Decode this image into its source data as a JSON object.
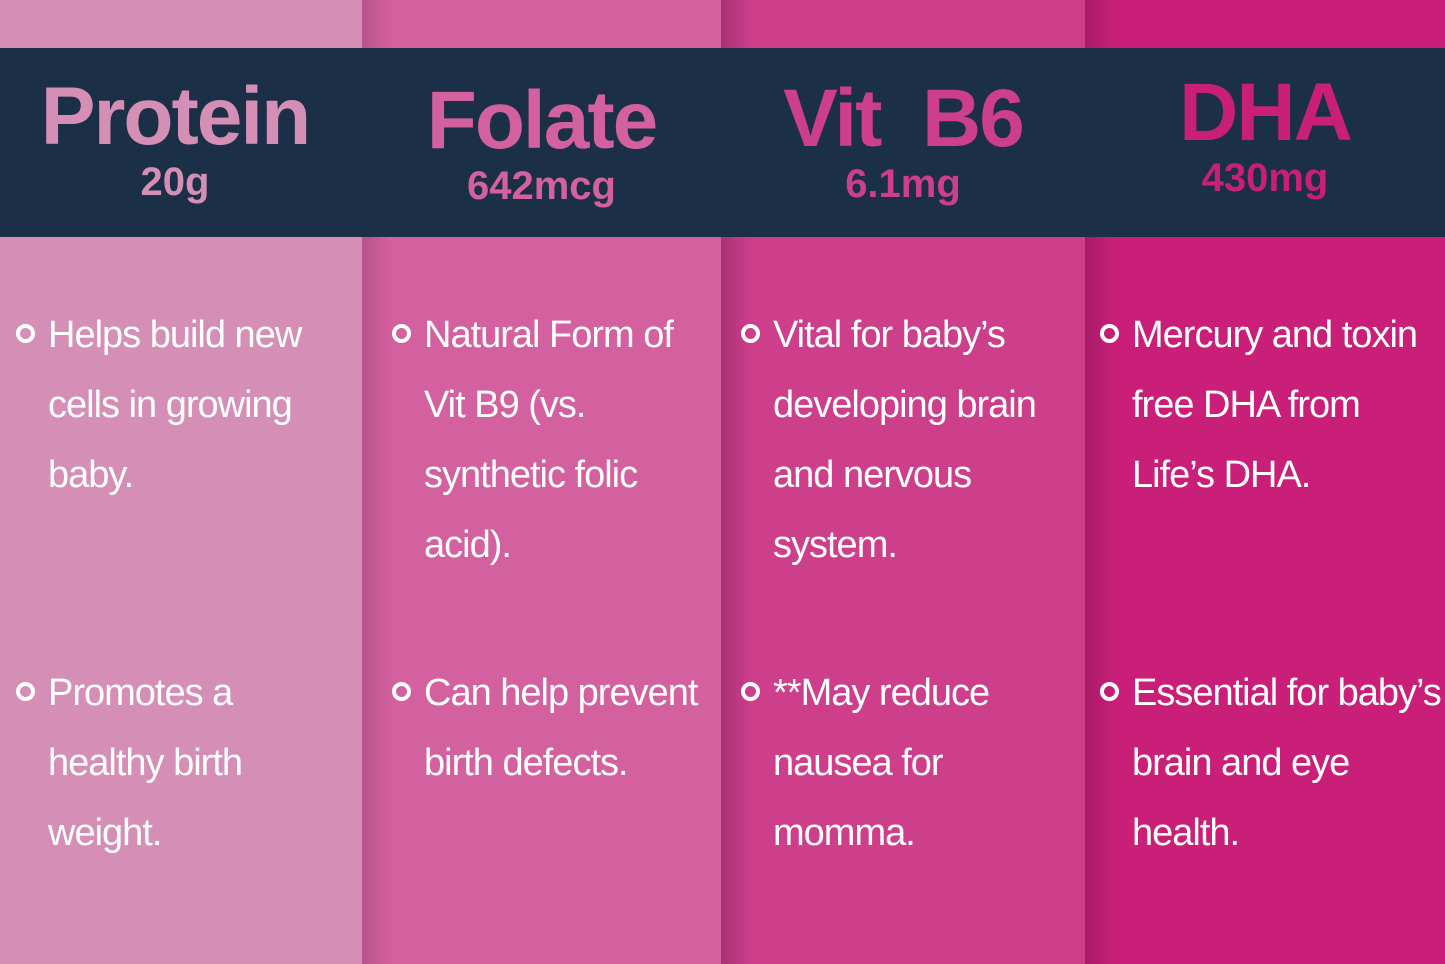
{
  "colors": {
    "band": "#1b2f46",
    "protein": "#d58fb7",
    "folate": "#d4619f",
    "vitb6": "#cd3e8b",
    "dha": "#c91f79"
  },
  "columns": [
    {
      "title": "Protein",
      "amount": "20g",
      "bullets": [
        "Helps build new cells in growing baby.",
        "Promotes a healthy birth weight."
      ]
    },
    {
      "title": "Folate",
      "amount": "642mcg",
      "bullets": [
        "Natural Form of Vit B9 (vs. synthetic folic acid).",
        "Can help prevent birth defects."
      ]
    },
    {
      "title": "Vit  B6",
      "amount": "6.1mg",
      "bullets": [
        "Vital for baby’s developing brain and nervous system.",
        "**May reduce nausea for momma."
      ]
    },
    {
      "title": "DHA",
      "amount": "430mg",
      "bullets": [
        "Mercury and toxin free DHA from Life’s DHA.",
        "Essential for baby’s brain and eye health."
      ]
    }
  ]
}
